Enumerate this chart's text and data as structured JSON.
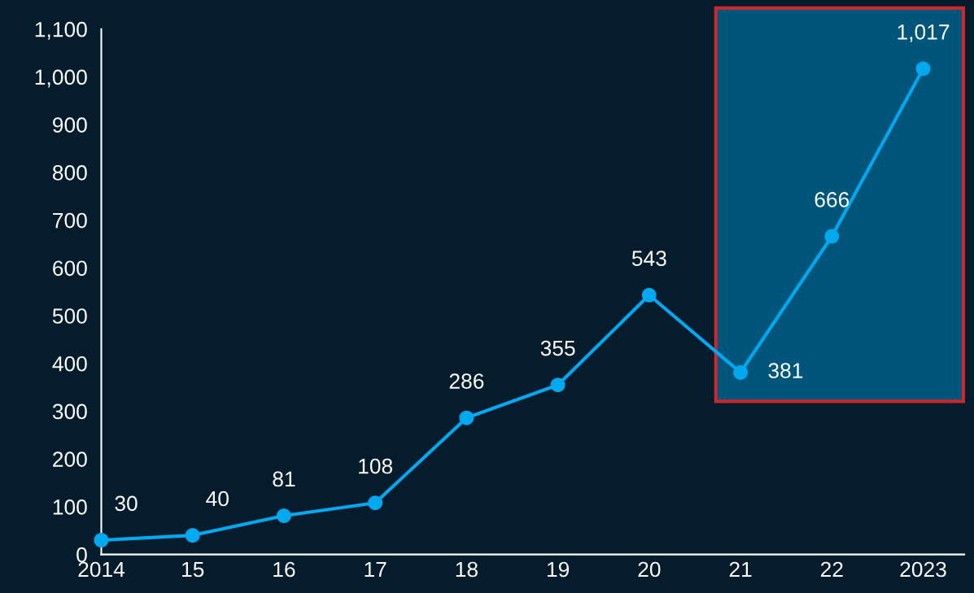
{
  "chart_data": {
    "type": "line",
    "categories": [
      "2014",
      "15",
      "16",
      "17",
      "18",
      "19",
      "20",
      "21",
      "22",
      "2023"
    ],
    "series": [
      {
        "color": "#00a8f0",
        "values": [
          30,
          40,
          81,
          108,
          286,
          355,
          543,
          381,
          666,
          1017
        ]
      }
    ],
    "ylim": [
      0,
      1100
    ],
    "yticks": [
      {
        "value": 0,
        "label": "0"
      },
      {
        "value": 100,
        "label": "100"
      },
      {
        "value": 200,
        "label": "200"
      },
      {
        "value": 300,
        "label": "300"
      },
      {
        "value": 400,
        "label": "400"
      },
      {
        "value": 500,
        "label": "500"
      },
      {
        "value": 600,
        "label": "600"
      },
      {
        "value": 700,
        "label": "700"
      },
      {
        "value": 800,
        "label": "800"
      },
      {
        "value": 900,
        "label": "900"
      },
      {
        "value": 1000,
        "label": "1,000"
      },
      {
        "value": 1100,
        "label": "1,100"
      }
    ],
    "value_labels": [
      "30",
      "40",
      "81",
      "108",
      "286",
      "355",
      "543",
      "381",
      "666",
      "1,017"
    ],
    "bands": [
      {
        "axis": "x",
        "from": "21",
        "to": "2023",
        "color": "#00567a"
      }
    ],
    "marker": "circle",
    "line_style": "solid",
    "grid": false
  }
}
